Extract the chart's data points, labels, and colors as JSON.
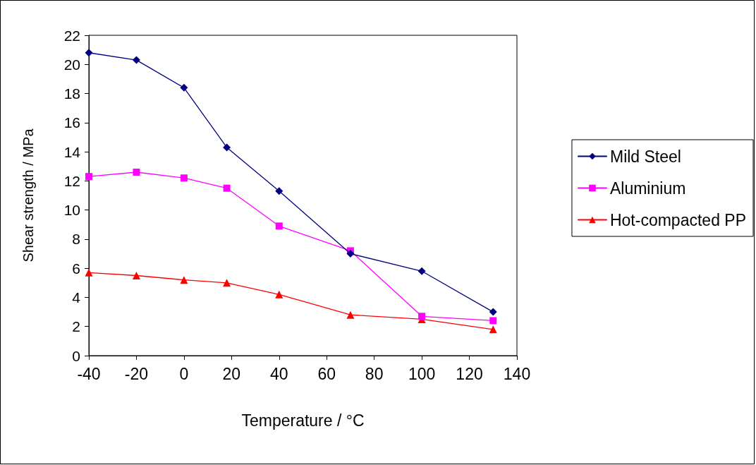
{
  "chart_data": {
    "type": "line",
    "xlabel": "Temperature / °C",
    "ylabel": "Shear strength / MPa",
    "x": [
      -40,
      -20,
      0,
      18,
      40,
      70,
      100,
      130
    ],
    "series": [
      {
        "name": "Mild Steel",
        "color": "#000080",
        "marker": "diamond",
        "values": [
          20.8,
          20.3,
          18.4,
          14.3,
          11.3,
          7.0,
          5.8,
          3.0
        ]
      },
      {
        "name": "Aluminium",
        "color": "#ff00ff",
        "marker": "square",
        "values": [
          12.3,
          12.6,
          12.2,
          11.5,
          8.9,
          7.2,
          2.7,
          2.4
        ]
      },
      {
        "name": "Hot-compacted PP",
        "color": "#ff0000",
        "marker": "triangle",
        "values": [
          5.7,
          5.5,
          5.2,
          5.0,
          4.2,
          2.8,
          2.5,
          1.8
        ]
      }
    ],
    "xlim": [
      -40,
      140
    ],
    "xticks": [
      -40,
      -20,
      0,
      20,
      40,
      60,
      80,
      100,
      120,
      140
    ],
    "ylim": [
      0,
      22
    ],
    "yticks": [
      0,
      2,
      4,
      6,
      8,
      10,
      12,
      14,
      16,
      18,
      20,
      22
    ],
    "grid": false,
    "legend": "right",
    "line_style": "solid"
  }
}
